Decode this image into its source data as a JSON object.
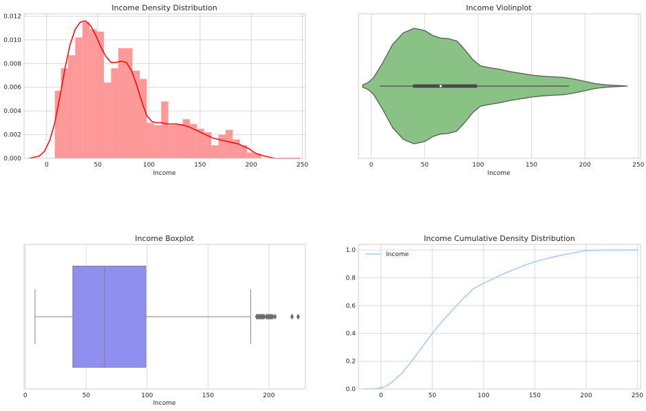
{
  "chart_data": [
    {
      "type": "bar",
      "panel": "histogram-kde",
      "title": "Income Density Distribution",
      "xlabel": "Income",
      "ylabel": "",
      "xlim": [
        -22,
        253
      ],
      "ylim": [
        0,
        0.0122
      ],
      "xticks": [
        0,
        50,
        100,
        150,
        200,
        250
      ],
      "yticks": [
        0.0,
        0.002,
        0.004,
        0.006,
        0.008,
        0.01,
        0.012
      ],
      "ytick_labels": [
        "0.000",
        "0.002",
        "0.004",
        "0.006",
        "0.008",
        "0.010",
        "0.012"
      ],
      "grid": true,
      "bar_color": "#ff9999",
      "line_color": "#ff0000",
      "bins": [
        {
          "x0": 8,
          "x1": 14,
          "value": 0.0057
        },
        {
          "x0": 14,
          "x1": 21,
          "value": 0.0076
        },
        {
          "x0": 21,
          "x1": 28,
          "value": 0.0087
        },
        {
          "x0": 28,
          "x1": 35,
          "value": 0.0102
        },
        {
          "x0": 35,
          "x1": 42,
          "value": 0.0115
        },
        {
          "x0": 42,
          "x1": 49,
          "value": 0.0109
        },
        {
          "x0": 49,
          "x1": 56,
          "value": 0.0107
        },
        {
          "x0": 56,
          "x1": 63,
          "value": 0.0064
        },
        {
          "x0": 63,
          "x1": 70,
          "value": 0.0076
        },
        {
          "x0": 70,
          "x1": 77,
          "value": 0.0093
        },
        {
          "x0": 77,
          "x1": 84,
          "value": 0.0093
        },
        {
          "x0": 84,
          "x1": 91,
          "value": 0.0074
        },
        {
          "x0": 91,
          "x1": 98,
          "value": 0.0067
        },
        {
          "x0": 98,
          "x1": 105,
          "value": 0.003
        },
        {
          "x0": 105,
          "x1": 112,
          "value": 0.0028
        },
        {
          "x0": 112,
          "x1": 119,
          "value": 0.0048
        },
        {
          "x0": 119,
          "x1": 126,
          "value": 0.0028
        },
        {
          "x0": 126,
          "x1": 133,
          "value": 0.0029
        },
        {
          "x0": 133,
          "x1": 140,
          "value": 0.0033
        },
        {
          "x0": 140,
          "x1": 147,
          "value": 0.0029
        },
        {
          "x0": 147,
          "x1": 154,
          "value": 0.0025
        },
        {
          "x0": 154,
          "x1": 161,
          "value": 0.0022
        },
        {
          "x0": 161,
          "x1": 168,
          "value": 0.0011
        },
        {
          "x0": 168,
          "x1": 175,
          "value": 0.002
        },
        {
          "x0": 175,
          "x1": 182,
          "value": 0.0024
        },
        {
          "x0": 182,
          "x1": 189,
          "value": 0.0016
        },
        {
          "x0": 189,
          "x1": 196,
          "value": 0.0011
        },
        {
          "x0": 196,
          "x1": 203,
          "value": 0.0005
        },
        {
          "x0": 203,
          "x1": 210,
          "value": 0.0004
        }
      ],
      "kde": {
        "x": [
          -17,
          -12,
          -7,
          -2,
          3,
          8,
          13,
          18,
          23,
          28,
          33,
          38,
          43,
          48,
          53,
          58,
          63,
          68,
          73,
          78,
          83,
          88,
          93,
          98,
          103,
          108,
          113,
          118,
          123,
          128,
          133,
          138,
          143,
          148,
          153,
          158,
          163,
          168,
          173,
          178,
          183,
          188,
          193,
          198,
          203,
          208,
          213,
          218,
          223,
          228,
          233,
          238,
          243,
          248
        ],
        "y": [
          0.0,
          0.0001,
          0.0002,
          0.0006,
          0.0015,
          0.003,
          0.0052,
          0.0076,
          0.0096,
          0.0109,
          0.0115,
          0.0116,
          0.0112,
          0.0104,
          0.0094,
          0.0086,
          0.0081,
          0.0081,
          0.0082,
          0.0081,
          0.0074,
          0.0062,
          0.0048,
          0.0036,
          0.0031,
          0.003,
          0.003,
          0.0029,
          0.0029,
          0.0029,
          0.0028,
          0.0027,
          0.0025,
          0.0023,
          0.0021,
          0.0019,
          0.0017,
          0.0016,
          0.0015,
          0.0014,
          0.0013,
          0.0012,
          0.001,
          0.0008,
          0.0005,
          0.0003,
          0.0002,
          0.0001,
          0.0,
          0.0,
          0.0,
          0.0,
          0.0,
          0.0
        ]
      }
    },
    {
      "type": "violin",
      "panel": "violin",
      "title": "Income Violinplot",
      "xlabel": "Income",
      "xlim": [
        -12,
        252
      ],
      "xticks": [
        0,
        50,
        100,
        150,
        200,
        250
      ],
      "grid": true,
      "fill_color": "#8ac286",
      "edge_color": "#595959",
      "density": {
        "x": [
          -8,
          -3,
          2,
          10,
          20,
          30,
          40,
          50,
          58,
          65,
          72,
          80,
          88,
          95,
          102,
          110,
          120,
          130,
          140,
          150,
          160,
          170,
          180,
          190,
          200,
          210,
          220,
          230,
          240
        ],
        "half_width": [
          0.02,
          0.06,
          0.14,
          0.38,
          0.72,
          0.92,
          1.0,
          0.96,
          0.87,
          0.83,
          0.82,
          0.78,
          0.62,
          0.46,
          0.35,
          0.32,
          0.29,
          0.25,
          0.22,
          0.19,
          0.17,
          0.16,
          0.15,
          0.12,
          0.08,
          0.04,
          0.02,
          0.01,
          0.0
        ]
      },
      "whisker_low": 8,
      "q1": 39,
      "median": 65,
      "q3": 99,
      "whisker_high": 185
    },
    {
      "type": "box",
      "panel": "boxplot",
      "title": "Income Boxplot",
      "xlabel": "Income",
      "xlim": [
        -1,
        230
      ],
      "xticks": [
        0,
        50,
        100,
        150,
        200
      ],
      "grid": true,
      "box_color": "#8f8ff0",
      "edge_color": "#808080",
      "whisker_low": 8,
      "q1": 39,
      "median": 65,
      "q3": 99,
      "whisker_high": 185,
      "outliers": [
        190,
        191,
        192,
        193,
        194,
        195,
        196,
        198,
        199,
        200,
        201,
        202,
        203,
        205,
        219,
        224
      ]
    },
    {
      "type": "line",
      "panel": "cdf",
      "title": "Income Cumulative Density Distribution",
      "xlabel": "",
      "xlim": [
        -22,
        253
      ],
      "ylim": [
        0,
        1.04
      ],
      "xticks": [
        0,
        50,
        100,
        150,
        200,
        250
      ],
      "yticks": [
        0.0,
        0.2,
        0.4,
        0.6,
        0.8,
        1.0
      ],
      "ytick_labels": [
        "0.0",
        "0.2",
        "0.4",
        "0.6",
        "0.8",
        "1.0"
      ],
      "grid": true,
      "legend_position": "top-left",
      "series": [
        {
          "name": "Income",
          "color": "#a1c9f4",
          "x": [
            -17,
            -10,
            -5,
            0,
            5,
            10,
            20,
            30,
            40,
            50,
            60,
            70,
            80,
            90,
            100,
            110,
            120,
            130,
            140,
            150,
            160,
            170,
            180,
            190,
            200,
            210,
            220,
            230,
            240,
            250
          ],
          "y": [
            0.0,
            0.001,
            0.003,
            0.008,
            0.02,
            0.045,
            0.11,
            0.2,
            0.3,
            0.4,
            0.49,
            0.57,
            0.65,
            0.72,
            0.76,
            0.795,
            0.83,
            0.86,
            0.89,
            0.915,
            0.935,
            0.953,
            0.968,
            0.982,
            0.995,
            0.998,
            1.0,
            1.0,
            1.0,
            1.0
          ]
        }
      ]
    }
  ]
}
